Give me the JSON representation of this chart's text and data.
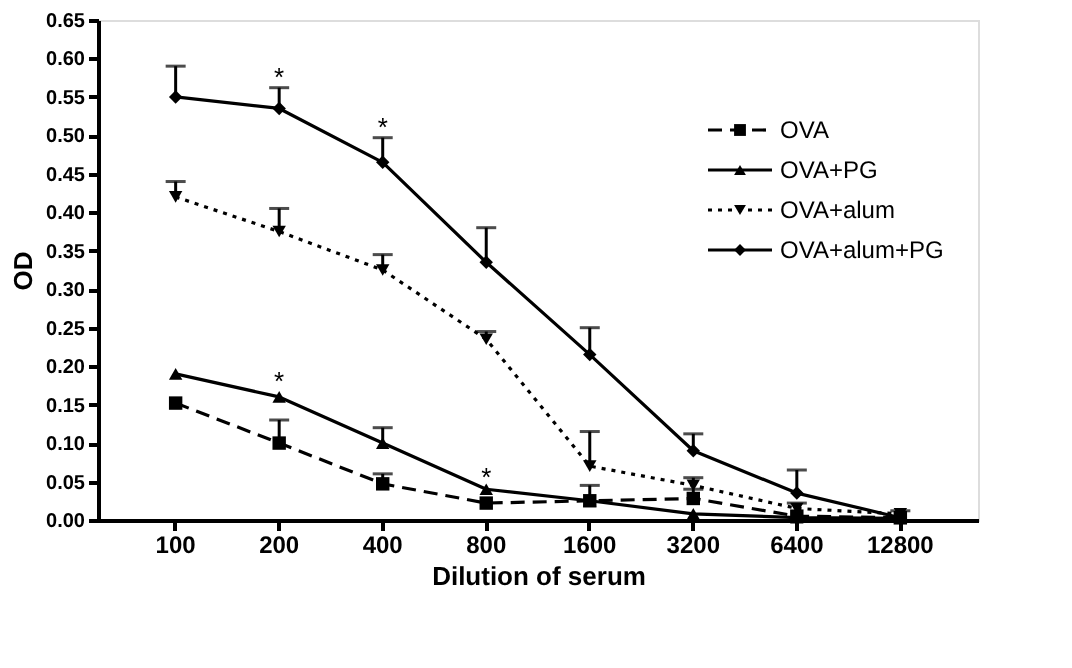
{
  "chart_data": {
    "type": "line",
    "xlabel": "Dilution of serum",
    "ylabel": "OD",
    "categories": [
      "100",
      "200",
      "400",
      "800",
      "1600",
      "3200",
      "6400",
      "12800"
    ],
    "series": [
      {
        "name": "OVA",
        "color": "#000000",
        "marker": "square",
        "line_style": "dashed",
        "values": [
          0.152,
          0.1,
          0.047,
          0.022,
          0.025,
          0.028,
          0.005,
          0.003
        ],
        "errors": [
          null,
          [
            0.1,
            0.13
          ],
          [
            0.047,
            0.06
          ],
          null,
          [
            0.025,
            0.045
          ],
          [
            0.028,
            0.04
          ],
          null,
          null
        ]
      },
      {
        "name": "OVA+PG",
        "color": "#000000",
        "marker": "triangle",
        "line_style": "solid",
        "values": [
          0.19,
          0.16,
          0.1,
          0.04,
          0.025,
          0.008,
          0.003,
          0.002
        ],
        "errors": [
          null,
          null,
          [
            0.1,
            0.12
          ],
          null,
          null,
          null,
          null,
          null
        ]
      },
      {
        "name": "OVA+alum",
        "color": "#000000",
        "marker": "triangle-down",
        "line_style": "dotted",
        "values": [
          0.42,
          0.375,
          0.325,
          0.235,
          0.07,
          0.045,
          0.015,
          0.008
        ],
        "errors": [
          [
            0.42,
            0.44
          ],
          [
            0.375,
            0.405
          ],
          [
            0.325,
            0.345
          ],
          [
            0.235,
            0.245
          ],
          [
            0.07,
            0.115
          ],
          [
            0.045,
            0.055
          ],
          [
            0.015,
            0.022
          ],
          [
            0.008,
            0.012
          ]
        ]
      },
      {
        "name": "OVA+alum+PG",
        "color": "#000000",
        "marker": "diamond",
        "line_style": "solid",
        "values": [
          0.55,
          0.535,
          0.465,
          0.335,
          0.215,
          0.09,
          0.035,
          0.003
        ],
        "errors": [
          [
            0.55,
            0.59
          ],
          [
            0.535,
            0.562
          ],
          [
            0.465,
            0.497
          ],
          [
            0.335,
            0.38
          ],
          [
            0.215,
            0.25
          ],
          [
            0.09,
            0.112
          ],
          [
            0.035,
            0.065
          ],
          null
        ]
      }
    ],
    "ylim": [
      0,
      0.65
    ],
    "yticks": [
      {
        "value": 0,
        "label": "0.00"
      },
      {
        "value": 0.05,
        "label": "0.05"
      },
      {
        "value": 0.1,
        "label": "0.10"
      },
      {
        "value": 0.15,
        "label": "0.15"
      },
      {
        "value": 0.2,
        "label": "0.20"
      },
      {
        "value": 0.25,
        "label": "0.25"
      },
      {
        "value": 0.3,
        "label": "0.30"
      },
      {
        "value": 0.35,
        "label": "0.35"
      },
      {
        "value": 0.4,
        "label": "0.40"
      },
      {
        "value": 0.45,
        "label": "0.45"
      },
      {
        "value": 0.5,
        "label": "0.50"
      },
      {
        "value": 0.55,
        "label": "0.55"
      },
      {
        "value": 0.6,
        "label": "0.60"
      },
      {
        "value": 0.65,
        "label": "0.65"
      }
    ],
    "annotations": [
      {
        "text": "*",
        "x": "200",
        "y": 0.575
      },
      {
        "text": "*",
        "x": "400",
        "y": 0.51
      },
      {
        "text": "*",
        "x": "200",
        "y": 0.18
      },
      {
        "text": "*",
        "x": "800",
        "y": 0.055
      }
    ],
    "legend": "right",
    "grid": false
  }
}
